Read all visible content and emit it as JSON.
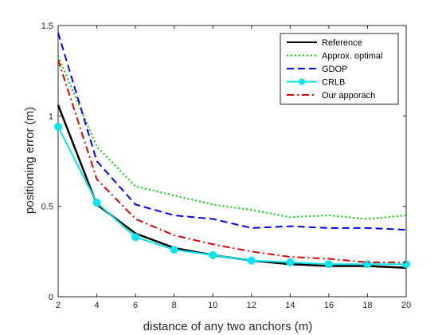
{
  "chart_data": {
    "type": "line",
    "title": "",
    "xlabel": "distance of any two anchors (m)",
    "ylabel": "positioning error (m)",
    "xlim": [
      2,
      20
    ],
    "ylim": [
      0,
      1.5
    ],
    "xticks": [
      2,
      4,
      6,
      8,
      10,
      12,
      14,
      16,
      18,
      20
    ],
    "yticks": [
      0,
      0.5,
      1,
      1.5
    ],
    "xtick_labels": [
      "2",
      "4",
      "6",
      "8",
      "10",
      "12",
      "14",
      "16",
      "18",
      "20"
    ],
    "ytick_labels": [
      "0",
      "0.5",
      "1",
      "1.5"
    ],
    "grid": false,
    "legend_position": "top-right",
    "x": [
      2,
      4,
      6,
      8,
      10,
      12,
      14,
      16,
      18,
      20
    ],
    "series": [
      {
        "name": "Reference",
        "color": "#000000",
        "style": "solid",
        "marker": "none",
        "values": [
          1.06,
          0.51,
          0.35,
          0.27,
          0.23,
          0.2,
          0.18,
          0.17,
          0.17,
          0.16
        ]
      },
      {
        "name": "Approx. optimal",
        "color": "#00cc00",
        "style": "dotted",
        "marker": "none",
        "values": [
          1.33,
          0.83,
          0.61,
          0.56,
          0.51,
          0.48,
          0.44,
          0.45,
          0.43,
          0.45
        ]
      },
      {
        "name": "GDOP",
        "color": "#0000ff",
        "style": "dashed",
        "marker": "none",
        "values": [
          1.46,
          0.75,
          0.51,
          0.45,
          0.43,
          0.38,
          0.39,
          0.38,
          0.38,
          0.37
        ]
      },
      {
        "name": "CRLB",
        "color": "#00e5ee",
        "style": "solid",
        "marker": "circle",
        "values": [
          0.94,
          0.52,
          0.33,
          0.26,
          0.23,
          0.2,
          0.19,
          0.18,
          0.18,
          0.18
        ]
      },
      {
        "name": "Our apporach",
        "color": "#dd0000",
        "style": "dashdot",
        "marker": "none",
        "values": [
          1.31,
          0.65,
          0.43,
          0.34,
          0.29,
          0.25,
          0.22,
          0.21,
          0.19,
          0.19
        ]
      }
    ]
  }
}
